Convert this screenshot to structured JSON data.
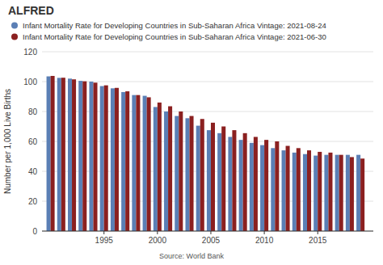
{
  "chart_data": {
    "type": "bar",
    "title": "ALFRED",
    "y_label": "Number per 1,000 Live Births",
    "annotations": [
      "Source: World Bank"
    ],
    "x": [
      1990,
      1991,
      1992,
      1993,
      1994,
      1995,
      1996,
      1997,
      1998,
      1999,
      2000,
      2001,
      2002,
      2003,
      2004,
      2005,
      2006,
      2007,
      2008,
      2009,
      2010,
      2011,
      2012,
      2013,
      2014,
      2015,
      2016,
      2017,
      2018,
      2019
    ],
    "series": [
      {
        "name": "Infant Mortality Rate for Developing Countries in Sub-Saharan Africa Vintage: 2021-08-24",
        "color": "#5b7fb5",
        "values": [
          103.5,
          102.5,
          102.0,
          100.5,
          100.0,
          97.0,
          95.5,
          93.0,
          91.0,
          90.5,
          83.0,
          80.0,
          77.0,
          75.5,
          70.5,
          67.5,
          65.5,
          63.0,
          61.0,
          59.0,
          57.5,
          55.5,
          54.0,
          52.5,
          51.5,
          50.5,
          51.0,
          51.0,
          51.0,
          51.0
        ]
      },
      {
        "name": "Infant Mortality Rate for Developing Countries in Sub-Saharan Africa Vintage: 2021-06-30",
        "color": "#8b2020",
        "values": [
          103.8,
          102.6,
          101.5,
          100.2,
          99.3,
          97.5,
          95.8,
          93.5,
          91.0,
          89.5,
          86.0,
          83.5,
          80.0,
          77.0,
          75.0,
          72.5,
          70.0,
          67.5,
          65.5,
          63.0,
          61.0,
          60.0,
          57.0,
          55.5,
          54.0,
          53.0,
          52.5,
          51.0,
          49.5,
          48.5
        ]
      }
    ],
    "xlim": [
      1989.2,
      2020.2
    ],
    "xticks": [
      1995,
      2000,
      2005,
      2010,
      2015
    ],
    "ylim": [
      0,
      120
    ],
    "yticks": [
      0,
      20,
      40,
      60,
      80,
      100,
      120
    ],
    "grid": true,
    "legend": "top"
  }
}
